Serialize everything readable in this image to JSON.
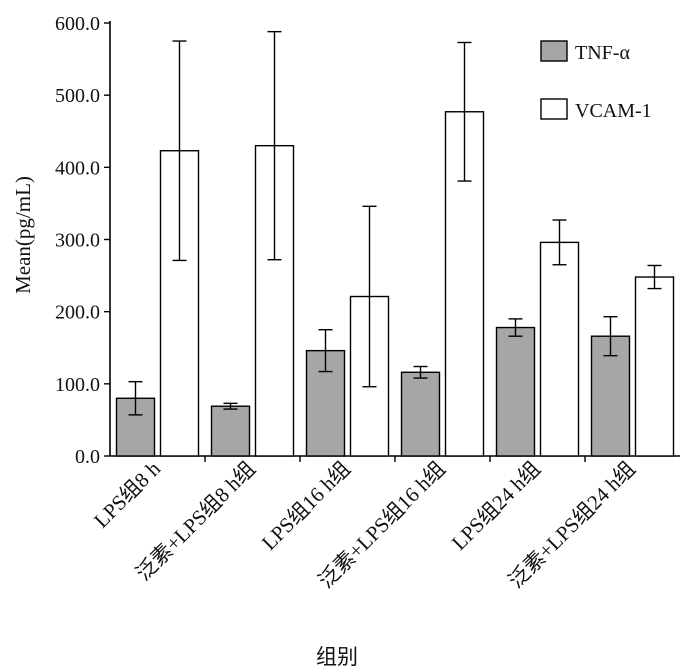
{
  "chart_data": {
    "type": "bar",
    "title": "",
    "xlabel": "组别",
    "ylabel": "Mean(pg/mL)",
    "ylim": [
      0,
      600
    ],
    "yticks": [
      "0.0",
      "100.0",
      "200.0",
      "300.0",
      "400.0",
      "500.0",
      "600.0"
    ],
    "categories": [
      "LPS组8 h",
      "泛素+LPS组8 h组",
      "LPS组16 h组",
      "泛素+LPS组16 h组",
      "LPS组24 h组",
      "泛素+LPS组24 h组"
    ],
    "series": [
      {
        "name": "TNF-α",
        "color": "#a6a6a6",
        "values": [
          80,
          69,
          146,
          116,
          178,
          166
        ],
        "errors": [
          23,
          4,
          29,
          8,
          12,
          27
        ]
      },
      {
        "name": "VCAM-1",
        "color": "#ffffff",
        "values": [
          423,
          430,
          221,
          477,
          296,
          248
        ],
        "errors": [
          152,
          158,
          125,
          96,
          31,
          16
        ]
      }
    ],
    "legend_position": "top-right",
    "grid": false
  }
}
